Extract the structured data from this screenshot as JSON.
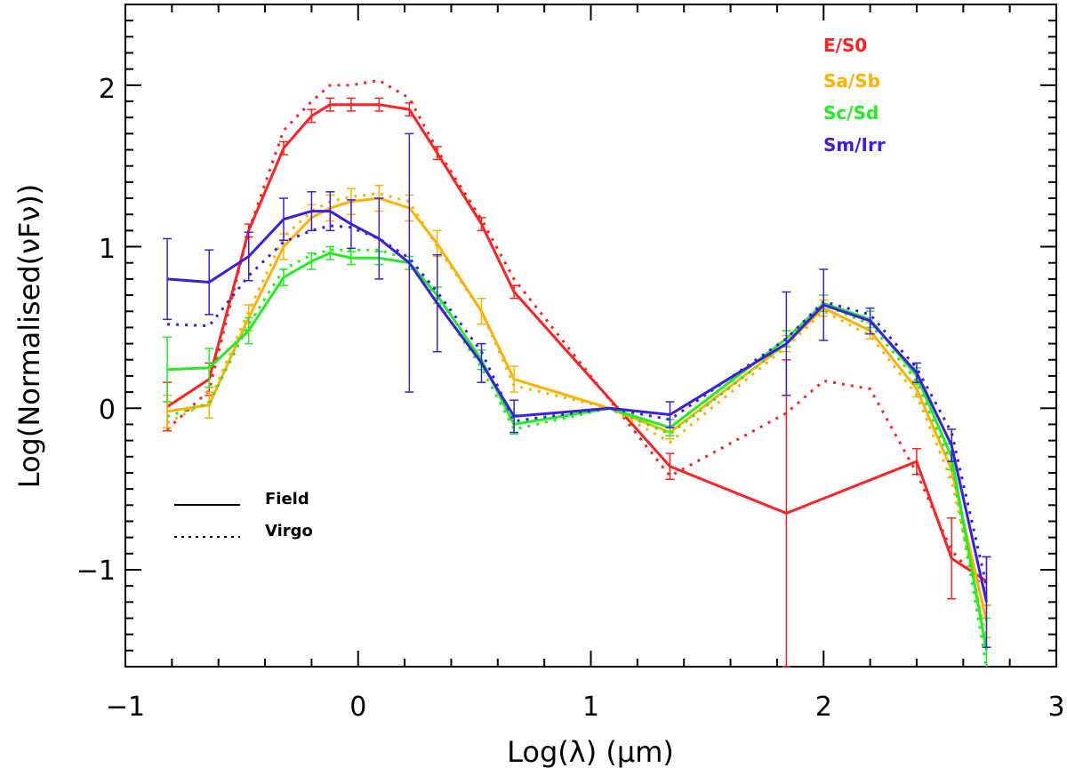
{
  "chart_data": {
    "type": "line",
    "title": "",
    "xlabel": "Log(λ) (μm)",
    "ylabel": "Log(Normalised(νFν))",
    "xlim": [
      -1,
      3
    ],
    "ylim": [
      -1.6,
      2.5
    ],
    "xticks": [
      -1,
      0,
      1,
      2,
      3
    ],
    "xtick_labels": [
      "−1",
      "0",
      "1",
      "2",
      "3"
    ],
    "yticks": [
      -1,
      0,
      1,
      2
    ],
    "ytick_labels": [
      "−1",
      "0",
      "1",
      "2"
    ],
    "legend_position": "top-right",
    "style_legend": [
      {
        "label": "Field",
        "dash": "solid"
      },
      {
        "label": "Virgo",
        "dash": "dotted"
      }
    ],
    "series": [
      {
        "name": "E/S0",
        "group": "Field",
        "color": "#ff2020",
        "x": [
          -0.82,
          -0.64,
          -0.47,
          -0.32,
          -0.2,
          -0.12,
          -0.03,
          0.09,
          0.22,
          0.34,
          0.53,
          0.67,
          1.34,
          1.84,
          2.4,
          2.55,
          2.7
        ],
        "y": [
          0.01,
          0.18,
          1.1,
          1.61,
          1.81,
          1.88,
          1.88,
          1.88,
          1.85,
          1.58,
          1.14,
          0.72,
          -0.36,
          -0.65,
          -0.33,
          -0.93,
          -1.07
        ],
        "err": [
          0.15,
          0.1,
          0.04,
          0.04,
          0.04,
          0.04,
          0.04,
          0.04,
          0.04,
          0.04,
          0.04,
          0.04,
          0.08,
          0.95,
          0.08,
          0.25,
          0.15
        ]
      },
      {
        "name": "E/S0",
        "group": "Virgo",
        "color": "#ff2020",
        "x": [
          -0.82,
          -0.64,
          -0.47,
          -0.32,
          -0.2,
          -0.12,
          -0.03,
          0.09,
          0.22,
          0.34,
          0.53,
          0.67,
          1.34,
          1.84,
          2.0,
          2.2,
          2.4,
          2.55,
          2.7
        ],
        "y": [
          -0.13,
          0.11,
          1.1,
          1.72,
          1.9,
          2.0,
          2.0,
          2.03,
          1.92,
          1.6,
          1.17,
          0.8,
          -0.42,
          -0.03,
          0.17,
          0.12,
          -0.4,
          -0.88,
          -1.13
        ]
      },
      {
        "name": "Sa/Sb",
        "group": "Field",
        "color": "#ffb000",
        "x": [
          -0.82,
          -0.64,
          -0.47,
          -0.32,
          -0.2,
          -0.12,
          -0.03,
          0.09,
          0.22,
          0.34,
          0.53,
          0.67,
          1.08,
          1.34,
          1.84,
          2.0,
          2.2,
          2.4,
          2.55,
          2.7
        ],
        "y": [
          -0.02,
          0.02,
          0.56,
          1.0,
          1.18,
          1.24,
          1.28,
          1.3,
          1.24,
          1.02,
          0.6,
          0.18,
          0.0,
          -0.15,
          0.4,
          0.62,
          0.48,
          0.12,
          -0.38,
          -1.32
        ],
        "err": [
          0.1,
          0.08,
          0.08,
          0.08,
          0.08,
          0.08,
          0.08,
          0.08,
          0.08,
          0.08,
          0.08,
          0.08,
          0.0,
          0.04,
          0.05,
          0.05,
          0.05,
          0.05,
          0.05,
          0.1
        ]
      },
      {
        "name": "Sa/Sb",
        "group": "Virgo",
        "color": "#ffb000",
        "x": [
          -0.82,
          -0.64,
          -0.47,
          -0.32,
          -0.2,
          -0.12,
          -0.03,
          0.09,
          0.22,
          0.34,
          0.53,
          0.67,
          1.08,
          1.34,
          1.84,
          2.0,
          2.2,
          2.4,
          2.55,
          2.7
        ],
        "y": [
          -0.09,
          0.04,
          0.6,
          1.06,
          1.22,
          1.28,
          1.31,
          1.33,
          1.28,
          1.0,
          0.6,
          0.14,
          0.0,
          -0.21,
          0.38,
          0.6,
          0.45,
          0.08,
          -0.45,
          -1.42
        ]
      },
      {
        "name": "Sc/Sd",
        "group": "Field",
        "color": "#20ee20",
        "x": [
          -0.82,
          -0.64,
          -0.47,
          -0.32,
          -0.2,
          -0.12,
          -0.03,
          0.09,
          0.22,
          0.34,
          0.53,
          0.67,
          1.08,
          1.34,
          1.84,
          2.0,
          2.2,
          2.4,
          2.55,
          2.7
        ],
        "y": [
          0.24,
          0.25,
          0.48,
          0.81,
          0.91,
          0.96,
          0.93,
          0.93,
          0.9,
          0.7,
          0.3,
          -0.1,
          0.0,
          -0.12,
          0.43,
          0.65,
          0.55,
          0.2,
          -0.3,
          -1.5
        ],
        "err": [
          0.2,
          0.12,
          0.08,
          0.05,
          0.05,
          0.04,
          0.04,
          0.04,
          0.04,
          0.05,
          0.06,
          0.06,
          0.0,
          0.05,
          0.05,
          0.05,
          0.05,
          0.05,
          0.08,
          0.2
        ]
      },
      {
        "name": "Sc/Sd",
        "group": "Virgo",
        "color": "#20ee20",
        "x": [
          -0.82,
          -0.64,
          -0.47,
          -0.32,
          -0.2,
          -0.12,
          -0.03,
          0.09,
          0.22,
          0.34,
          0.53,
          0.67,
          1.08,
          1.34,
          1.84,
          2.0,
          2.2,
          2.4,
          2.55,
          2.7
        ],
        "y": [
          -0.05,
          0.03,
          0.52,
          0.86,
          0.95,
          0.98,
          0.98,
          0.98,
          0.92,
          0.66,
          0.25,
          -0.13,
          0.0,
          -0.16,
          0.4,
          0.64,
          0.52,
          0.17,
          -0.35,
          -1.62
        ]
      },
      {
        "name": "Sm/Irr",
        "group": "Field",
        "color": "#3a1fe0",
        "x": [
          -0.82,
          -0.64,
          -0.47,
          -0.32,
          -0.2,
          -0.12,
          -0.03,
          0.09,
          0.22,
          0.34,
          0.53,
          0.67,
          1.08,
          1.34,
          1.84,
          2.0,
          2.2,
          2.4,
          2.55,
          2.7
        ],
        "y": [
          0.8,
          0.78,
          0.94,
          1.17,
          1.22,
          1.22,
          1.14,
          1.05,
          0.9,
          0.65,
          0.28,
          -0.05,
          0.0,
          -0.04,
          0.4,
          0.64,
          0.54,
          0.22,
          -0.23,
          -1.2
        ],
        "err": [
          0.25,
          0.2,
          0.15,
          0.13,
          0.12,
          0.12,
          0.15,
          0.25,
          0.8,
          0.3,
          0.12,
          0.1,
          0.0,
          0.08,
          0.32,
          0.22,
          0.08,
          0.06,
          0.1,
          0.28
        ]
      },
      {
        "name": "Sm/Irr",
        "group": "Virgo",
        "color": "#3a1fe0",
        "x": [
          -0.82,
          -0.64,
          -0.47,
          -0.32,
          -0.2,
          -0.12,
          -0.03,
          0.09,
          0.22,
          0.34,
          0.53,
          0.67,
          1.08,
          1.34,
          1.84,
          2.0,
          2.2,
          2.4,
          2.55,
          2.7
        ],
        "y": [
          0.52,
          0.51,
          0.82,
          1.03,
          1.1,
          1.13,
          1.12,
          1.05,
          0.93,
          0.72,
          0.35,
          -0.08,
          0.0,
          -0.07,
          0.43,
          0.66,
          0.58,
          0.25,
          -0.15,
          -1.1
        ]
      }
    ],
    "legend": [
      {
        "label": "E/S0",
        "color": "#ff2020"
      },
      {
        "label": "Sa/Sb",
        "color": "#ffb000"
      },
      {
        "label": "Sc/Sd",
        "color": "#20ee20"
      },
      {
        "label": "Sm/Irr",
        "color": "#3a1fe0"
      }
    ]
  }
}
